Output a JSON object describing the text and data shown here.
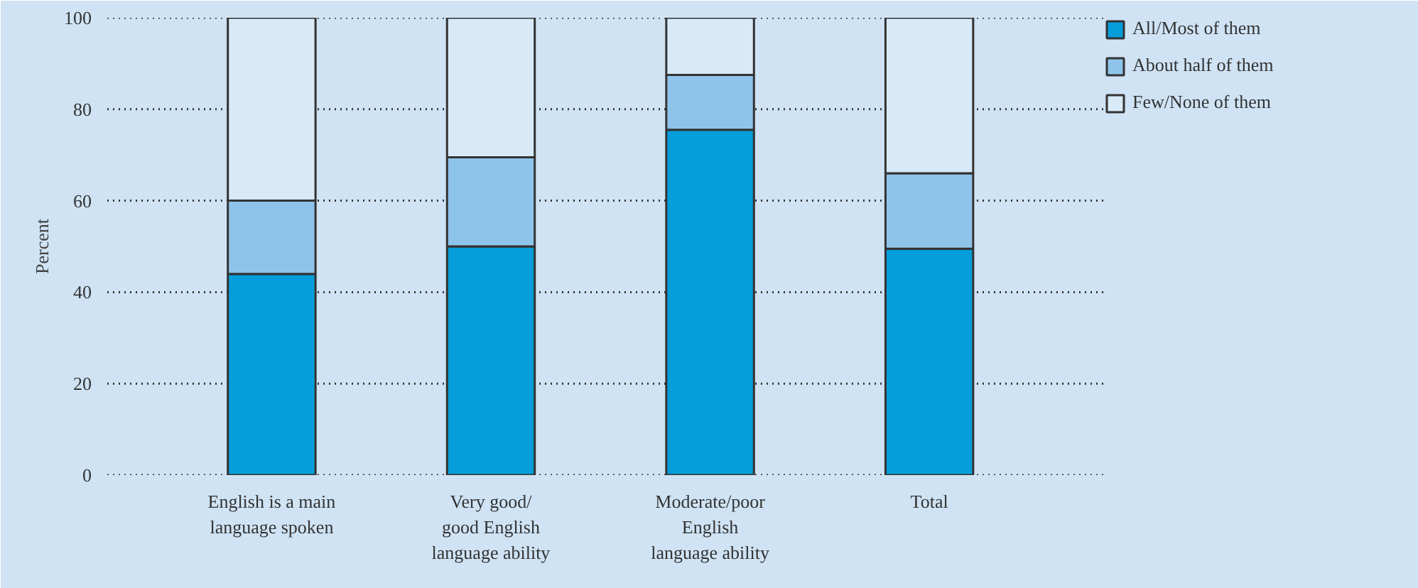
{
  "chart_data": {
    "type": "bar",
    "stacked": true,
    "ylabel": "Percent",
    "categories": [
      "English is a main\nlanguage spoken",
      "Very good/\ngood English\nlanguage ability",
      "Moderate/poor\nEnglish\nlanguage ability",
      "Total"
    ],
    "series": [
      {
        "name": "All/Most of them",
        "color": "#059dda",
        "values": [
          44,
          50,
          75.5,
          49.5
        ]
      },
      {
        "name": "About half of them",
        "color": "#8fc4ea",
        "values": [
          16,
          19.5,
          12,
          16.5
        ]
      },
      {
        "name": "Few/None of them",
        "color": "#d8eaf8",
        "values": [
          40,
          30.5,
          12.5,
          34
        ]
      }
    ],
    "ylim": [
      0,
      100
    ],
    "yticks": [
      0,
      20,
      40,
      60,
      80,
      100
    ],
    "grid": "y",
    "legend": "top right"
  }
}
